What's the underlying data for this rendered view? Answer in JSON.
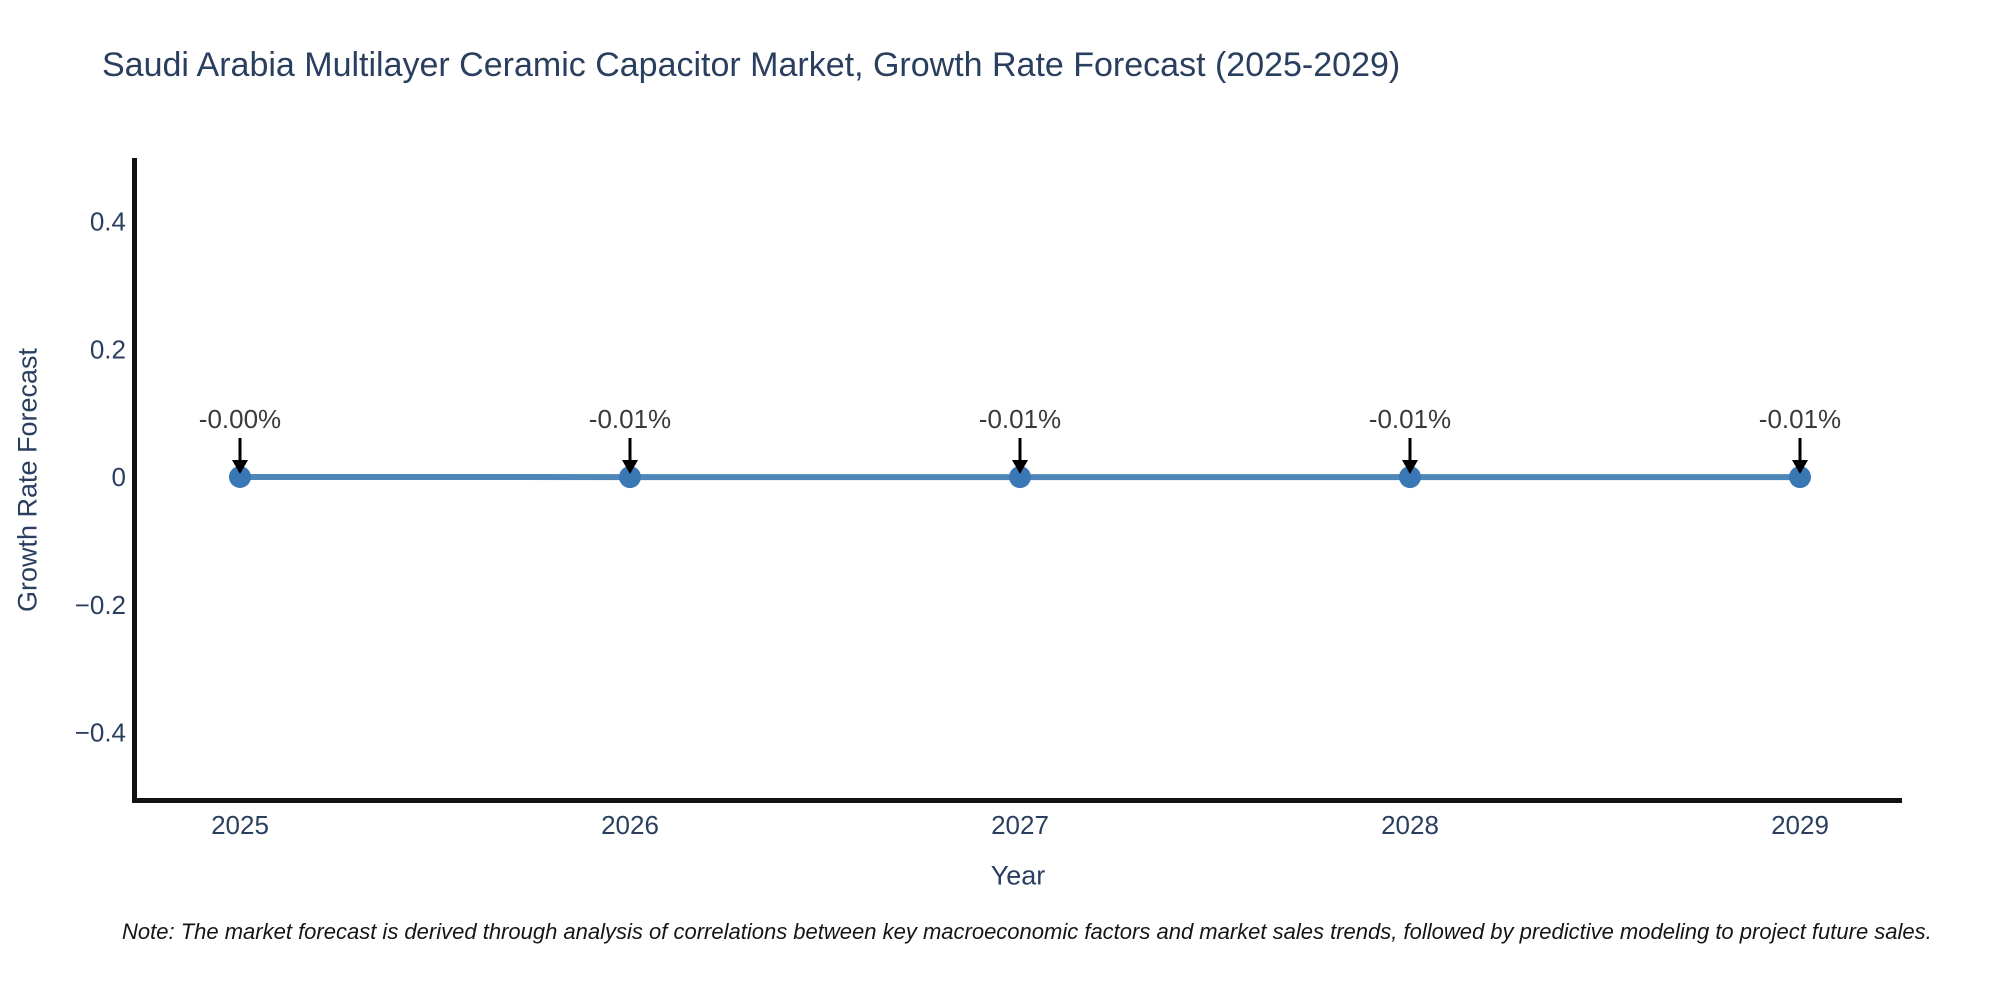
{
  "header": {
    "title": "Saudi Arabia Multilayer Ceramic Capacitor Market, Growth Rate Forecast (2025-2029)"
  },
  "chart_data": {
    "type": "line",
    "x": [
      2025,
      2026,
      2027,
      2028,
      2029
    ],
    "values_pct": [
      -0.0,
      -0.01,
      -0.01,
      -0.01,
      -0.01
    ],
    "point_labels": [
      "-0.00%",
      "-0.01%",
      "-0.01%",
      "-0.01%",
      "-0.01%"
    ],
    "title": "Saudi Arabia Multilayer Ceramic Capacitor Market, Growth Rate Forecast (2025-2029)",
    "xlabel": "Year",
    "ylabel": "Growth Rate Forecast",
    "x_tick_labels": [
      "2025",
      "2026",
      "2027",
      "2028",
      "2029"
    ],
    "y_ticks": [
      {
        "value": 0.4,
        "label": "0.4"
      },
      {
        "value": 0.2,
        "label": "0.2"
      },
      {
        "value": 0,
        "label": "0"
      },
      {
        "value": -0.2,
        "label": "−0.2"
      },
      {
        "value": -0.4,
        "label": "−0.4"
      }
    ],
    "ylim": [
      -0.5,
      0.5
    ],
    "xlim": [
      2024.74,
      2029.26
    ],
    "grid": false,
    "legend": "none",
    "colors": {
      "line": "#4f86b8",
      "marker": "#3a78b5",
      "axis_spine": "#111111",
      "arrow": "#000000",
      "text": "#2a3f5f",
      "annotation_text": "#3a3a3a"
    }
  },
  "footnote": {
    "text": "Note: The market forecast is derived through analysis of correlations between key macroeconomic factors and market sales trends, followed by predictive modeling to project future sales."
  }
}
